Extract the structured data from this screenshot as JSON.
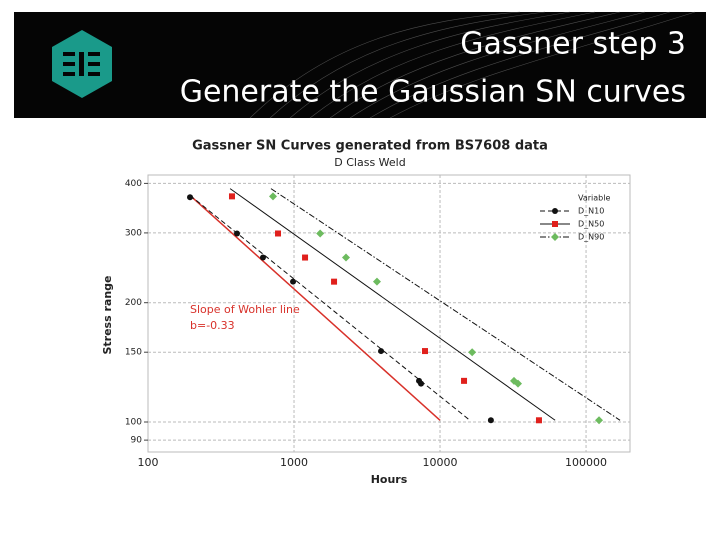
{
  "header": {
    "title_lines": [
      "Gassner step 3",
      "Generate the Gaussian SN curves"
    ]
  },
  "chart_data": {
    "type": "scatter",
    "title": "Gassner SN Curves generated from BS7608 data",
    "subtitle": "D Class Weld",
    "x_label": "Hours",
    "y_label": "Stress range",
    "x_log": true,
    "y_log": true,
    "grid": true,
    "xlim": [
      100,
      200000
    ],
    "xticks": [
      100,
      1000,
      10000,
      100000
    ],
    "ylim": [
      84,
      420
    ],
    "yticks": [
      90,
      100,
      150,
      200,
      300,
      400
    ],
    "legend_title": "Variable",
    "legend_position": "upper right",
    "series": [
      {
        "name": "D_N10",
        "color": "#111111",
        "marker": "circle",
        "line_style": "dashed",
        "line_color": "#111111",
        "x": [
          194,
          407,
          613,
          985,
          3945,
          7180,
          7410,
          22300
        ],
        "values": [
          369,
          299,
          260,
          226,
          151,
          127,
          125,
          101
        ],
        "fit": {
          "x": [
            194,
            16000
          ],
          "y": [
            373,
            101
          ]
        }
      },
      {
        "name": "D_N50",
        "color": "#e0201c",
        "marker": "square",
        "line_style": "solid",
        "line_color": "#111111",
        "x": [
          376,
          777,
          1190,
          1880,
          7890,
          14600,
          47600
        ],
        "values": [
          371,
          299,
          260,
          226,
          151,
          127,
          101
        ],
        "fit": {
          "x": [
            365,
            61400
          ],
          "y": [
            388,
            101
          ]
        }
      },
      {
        "name": "D_N90",
        "color": "#6dbb5f",
        "marker": "diamond",
        "line_style": "dashdot",
        "line_color": "#111111",
        "x": [
          718,
          1510,
          2270,
          3700,
          16600,
          32100,
          34200,
          122700
        ],
        "values": [
          371,
          299,
          260,
          226,
          150,
          127,
          125,
          101
        ],
        "fit": {
          "x": [
            695,
            171000
          ],
          "y": [
            388,
            101
          ]
        }
      }
    ],
    "annotation": {
      "lines": [
        "Slope of Wohler line",
        "b=-0.33"
      ],
      "color": "#d8312a",
      "line": {
        "x": [
          194,
          10000
        ],
        "y": [
          373,
          101
        ]
      }
    }
  }
}
